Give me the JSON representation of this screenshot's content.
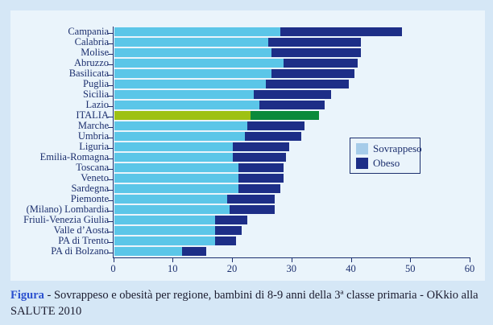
{
  "figure": {
    "caption_label": "Figura",
    "caption_text": " - Sovrappeso e obesità per regione, bambini di 8-9 anni della 3ª classe primaria - OKkio alla SALUTE 2010"
  },
  "legend": {
    "items": [
      {
        "label": "Sovrappeso",
        "color": "#a6cce9"
      },
      {
        "label": "Obeso",
        "color": "#1d2e87"
      }
    ]
  },
  "colors": {
    "sovrappeso_bar": "#5bc6e8",
    "obeso_bar": "#1d2e87",
    "highlight_sovrappeso": "#9ec112",
    "highlight_obeso": "#0a8a3b",
    "axis": "#1c2f6e",
    "panel_background": "#eaf4fb",
    "page_background": "#d5e7f6",
    "caption_accent": "#2b50cf"
  },
  "chart_data": {
    "type": "bar",
    "orientation": "horizontal",
    "stacked": true,
    "title": "",
    "xlabel": "",
    "ylabel": "",
    "xlim": [
      0,
      60
    ],
    "xticks": [
      0,
      10,
      20,
      30,
      40,
      50,
      60
    ],
    "grid": false,
    "legend_position": "middle-right",
    "categories": [
      "Campania",
      "Calabria",
      "Molise",
      "Abruzzo",
      "Basilicata",
      "Puglia",
      "Sicilia",
      "Lazio",
      "ITALIA",
      "Marche",
      "Umbria",
      "Liguria",
      "Emilia-Romagna",
      "Toscana",
      "Veneto",
      "Sardegna",
      "Piemonte",
      "(Milano) Lombardia",
      "Friuli-Venezia Giulia",
      "Valle d’Aosta",
      "PA di Trento",
      "PA di Bolzano"
    ],
    "series": [
      {
        "name": "Sovrappeso",
        "values": [
          28,
          26,
          26.5,
          28.5,
          26.5,
          25.5,
          23.5,
          24.5,
          23,
          22.5,
          22,
          20,
          20,
          21,
          21,
          21,
          19,
          19.5,
          17,
          17,
          17,
          11.5
        ]
      },
      {
        "name": "Obeso",
        "values": [
          20.5,
          15.5,
          15,
          12.5,
          14,
          14,
          13,
          11,
          11.5,
          9.5,
          9.5,
          9.5,
          9,
          7.5,
          7.5,
          7,
          8,
          7.5,
          5.5,
          4.5,
          3.5,
          4
        ]
      }
    ],
    "highlight": {
      "category": "ITALIA",
      "sovrappeso_color": "#9ec112",
      "obeso_color": "#0a8a3b"
    }
  }
}
